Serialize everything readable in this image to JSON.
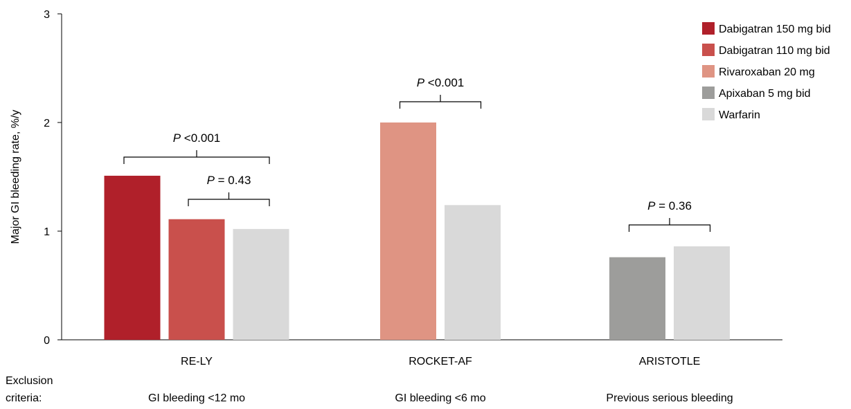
{
  "chart_data": {
    "type": "bar",
    "ylabel": "Major GI bleeding rate, %/y",
    "ylim": [
      0,
      3
    ],
    "yticks": [
      "0",
      "1",
      "2",
      "3"
    ],
    "grid": false,
    "legend_position": "top-right",
    "series": [
      {
        "name": "Dabigatran 150 mg bid",
        "color": "#b0202a"
      },
      {
        "name": "Dabigatran 110 mg bid",
        "color": "#c9504c"
      },
      {
        "name": "Rivaroxaban 20 mg",
        "color": "#df9483"
      },
      {
        "name": "Apixaban 5 mg bid",
        "color": "#9d9d9b"
      },
      {
        "name": "Warfarin",
        "color": "#d9d9d9"
      }
    ],
    "groups": [
      {
        "name": "RE-LY",
        "exclusion": "GI bleeding <12 mo",
        "bars": [
          {
            "series": "Dabigatran 150 mg bid",
            "value": 1.51
          },
          {
            "series": "Dabigatran 110 mg bid",
            "value": 1.11
          },
          {
            "series": "Warfarin",
            "value": 1.02
          }
        ]
      },
      {
        "name": "ROCKET-AF",
        "exclusion": "GI bleeding <6 mo",
        "bars": [
          {
            "series": "Rivaroxaban 20 mg",
            "value": 2.0
          },
          {
            "series": "Warfarin",
            "value": 1.24
          }
        ]
      },
      {
        "name": "ARISTOTLE",
        "exclusion": "Previous serious bleeding",
        "bars": [
          {
            "series": "Apixaban 5 mg bid",
            "value": 0.76
          },
          {
            "series": "Warfarin",
            "value": 0.86
          }
        ]
      }
    ],
    "comparisons": [
      {
        "group": "RE-LY",
        "from_bar": 0,
        "to_bar": 2,
        "p_label": "P",
        "text": "<0.001"
      },
      {
        "group": "RE-LY",
        "from_bar": 1,
        "to_bar": 2,
        "p_label": "P",
        "text": "= 0.43"
      },
      {
        "group": "ROCKET-AF",
        "from_bar": 0,
        "to_bar": 1,
        "p_label": "P",
        "text": "<0.001"
      },
      {
        "group": "ARISTOTLE",
        "from_bar": 0,
        "to_bar": 1,
        "p_label": "P",
        "text": "= 0.36"
      }
    ],
    "exclusion_title_line1": "Exclusion",
    "exclusion_title_line2": "criteria:"
  }
}
